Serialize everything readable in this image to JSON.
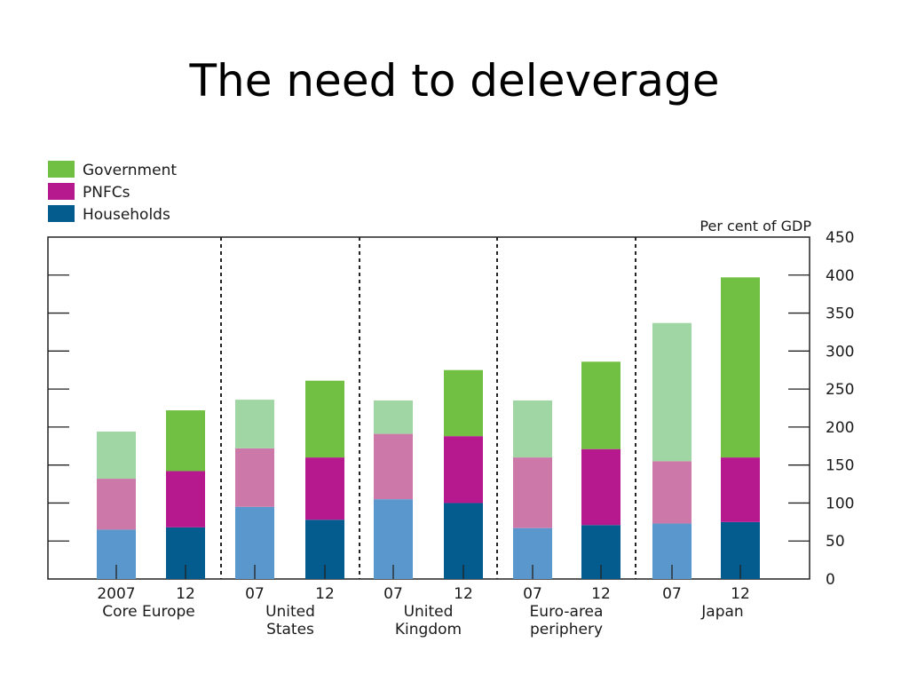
{
  "slide": {
    "title": "The need to deleverage"
  },
  "chart_data": {
    "type": "bar",
    "stacked": true,
    "unit_label": "Per cent of GDP",
    "ylim": [
      0,
      450
    ],
    "y_ticks": [
      0,
      50,
      100,
      150,
      200,
      250,
      300,
      350,
      400,
      450
    ],
    "legend": {
      "position": "top-left",
      "entries": [
        {
          "name": "Government",
          "color": "#72c043"
        },
        {
          "name": "PNFCs",
          "color": "#b5198d"
        },
        {
          "name": "Households",
          "color": "#045b8e"
        }
      ]
    },
    "series_order": [
      "Households",
      "PNFCs",
      "Government"
    ],
    "colors": {
      "2012": {
        "Households": "#045b8e",
        "PNFCs": "#b5198d",
        "Government": "#72c043"
      },
      "2007": {
        "Households": "#5a97cc",
        "PNFCs": "#cc78a9",
        "Government": "#a0d6a3"
      }
    },
    "groups": [
      {
        "label": [
          "Core Europe"
        ],
        "bars": [
          {
            "tick": "2007",
            "year": "2007",
            "Households": 65,
            "PNFCs": 67,
            "Government": 62
          },
          {
            "tick": "12",
            "year": "2012",
            "Households": 68,
            "PNFCs": 74,
            "Government": 80
          }
        ]
      },
      {
        "label": [
          "United",
          "States"
        ],
        "bars": [
          {
            "tick": "07",
            "year": "2007",
            "Households": 95,
            "PNFCs": 77,
            "Government": 64
          },
          {
            "tick": "12",
            "year": "2012",
            "Households": 78,
            "PNFCs": 82,
            "Government": 101
          }
        ]
      },
      {
        "label": [
          "United",
          "Kingdom"
        ],
        "bars": [
          {
            "tick": "07",
            "year": "2007",
            "Households": 105,
            "PNFCs": 86,
            "Government": 44
          },
          {
            "tick": "12",
            "year": "2012",
            "Households": 100,
            "PNFCs": 88,
            "Government": 87
          }
        ]
      },
      {
        "label": [
          "Euro-area",
          "periphery"
        ],
        "bars": [
          {
            "tick": "07",
            "year": "2007",
            "Households": 67,
            "PNFCs": 93,
            "Government": 75
          },
          {
            "tick": "12",
            "year": "2012",
            "Households": 71,
            "PNFCs": 100,
            "Government": 115
          }
        ]
      },
      {
        "label": [
          "Japan"
        ],
        "bars": [
          {
            "tick": "07",
            "year": "2007",
            "Households": 73,
            "PNFCs": 82,
            "Government": 182
          },
          {
            "tick": "12",
            "year": "2012",
            "Households": 75,
            "PNFCs": 85,
            "Government": 237
          }
        ]
      }
    ]
  }
}
